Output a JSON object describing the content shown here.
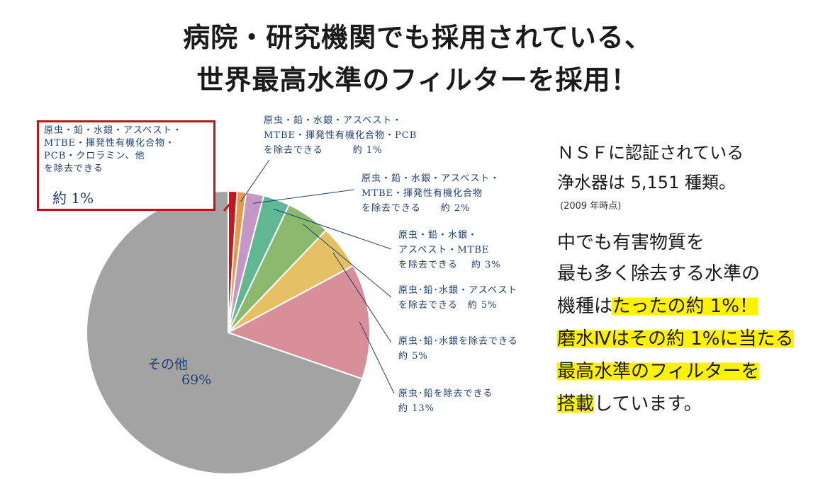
{
  "title": {
    "line1": "病院・研究機関でも採用されている、",
    "line2": "世界最高水準のフィルターを採用！"
  },
  "right": {
    "nsf_line1": "ＮＳＦに認証されている",
    "nsf_line2": "浄水器は 5,151 種類。",
    "year_note": "(2009 年時点)",
    "p1": "中でも有害物質を",
    "p2": "最も多く除去する水準の",
    "p3a": "機種は",
    "p3b": "たったの約 1%！",
    "p4": "磨水Ⅳはその約 1%に当たる",
    "p5": "最高水準のフィルターを",
    "p6a": "搭載",
    "p6b": "しています。",
    "highlight_color": "#fff200"
  },
  "callout": {
    "text": "原虫・鉛・水銀・アスベスト・\nMTBE・揮発性有機化合物・\nPCB・クロラミン、他\nを除去できる",
    "pct": "約 1%",
    "border_color": "#c0141c"
  },
  "chart_data": {
    "type": "pie",
    "start": "12 o'clock, clockwise",
    "slices": [
      {
        "label": "原虫・鉛・水銀・アスベスト・MTBE・揮発性有機化合物・PCB・クロラミン、他を除去できる",
        "value": 1,
        "color": "#c8141e"
      },
      {
        "label": "原虫・鉛・水銀・アスベスト・MTBE・揮発性有機化合物・PCBを除去できる",
        "value": 1,
        "color": "#e49a4a"
      },
      {
        "label": "原虫・鉛・水銀・アスベスト・MTBE・揮発性有機化合物を除去できる",
        "value": 2,
        "color": "#c497c4"
      },
      {
        "label": "原虫・鉛・水銀・アスベスト・MTBEを除去できる",
        "value": 3,
        "color": "#5fb891"
      },
      {
        "label": "原虫・鉛・水銀・アスベストを除去できる",
        "value": 5,
        "color": "#8ab96e"
      },
      {
        "label": "原虫・鉛・水銀を除去できる",
        "value": 5,
        "color": "#e5c163"
      },
      {
        "label": "原虫・鉛を除去できる",
        "value": 13,
        "color": "#d98f99"
      },
      {
        "label": "その他",
        "value": 69,
        "color": "#a3a3a3"
      }
    ],
    "labels": {
      "pcb": "原虫・鉛・水銀・アスベスト・\nMTBE・揮発性有機化合物・PCB\nを除去できる　　　約 1%",
      "voc": "原虫・鉛・水銀・アスベスト・\nMTBE・揮発性有機化合物\nを除去できる　　約 2%",
      "mtbe": "原虫・鉛・水銀・\nアスベスト・MTBE\nを除去できる　 約 3%",
      "asbestos": "原虫･鉛･水銀・アスベスト\nを除去できる　約 5%",
      "mercury": "原虫･鉛･水銀を除去できる\n約 5%",
      "lead": "原虫･鉛を除去できる\n約 13%",
      "other_name": "その他",
      "other_pct": "69%"
    },
    "leader_color": "#1f3f7a"
  }
}
